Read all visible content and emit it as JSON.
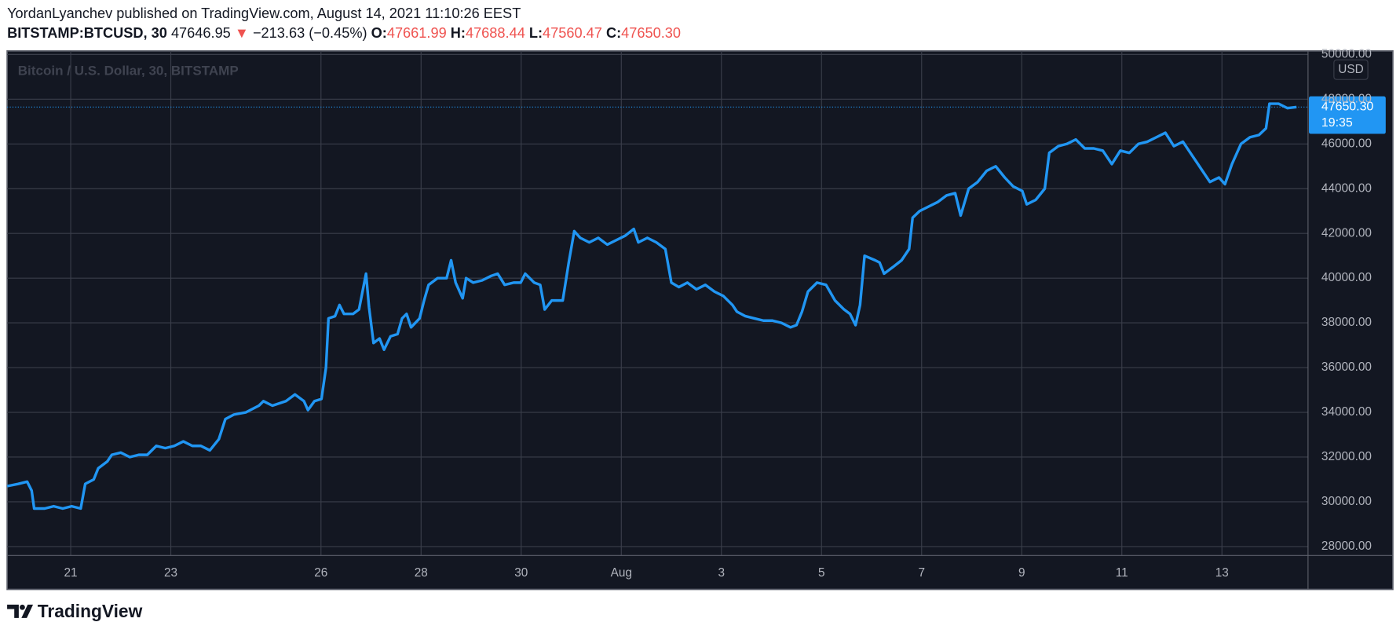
{
  "header": {
    "byline": "YordanLyanchev published on TradingView.com, August 14, 2021 11:10:26 EEST",
    "symbol": "BITSTAMP:BTCUSD, 30",
    "price": "47646.95",
    "arrow": "▼",
    "change": "−213.63 (−0.45%)",
    "open_label": "O:",
    "open": "47661.99",
    "high_label": "H:",
    "high": "47688.44",
    "low_label": "L:",
    "low": "47560.47",
    "close_label": "C:",
    "close": "47650.30"
  },
  "chart_data": {
    "type": "line",
    "title": "Bitcoin / U.S. Dollar, 30, BITSTAMP",
    "currency": "USD",
    "last_price_label": "47650.30",
    "countdown": "19:35",
    "x": [
      19.73,
      19.95,
      20.13,
      20.22,
      20.27,
      20.48,
      20.66,
      20.84,
      21.02,
      21.2,
      21.29,
      21.46,
      21.55,
      21.73,
      21.82,
      22.0,
      22.18,
      22.36,
      22.53,
      22.71,
      22.89,
      23.07,
      23.25,
      23.43,
      23.6,
      23.78,
      23.96,
      24.09,
      24.26,
      24.5,
      24.76,
      24.85,
      25.03,
      25.3,
      25.48,
      25.66,
      25.74,
      25.87,
      26.01,
      26.1,
      26.15,
      26.28,
      26.37,
      26.46,
      26.64,
      26.76,
      26.9,
      26.96,
      27.05,
      27.17,
      27.26,
      27.39,
      27.53,
      27.62,
      27.71,
      27.8,
      27.97,
      28.06,
      28.15,
      28.33,
      28.51,
      28.6,
      28.69,
      28.83,
      28.9,
      29.04,
      29.22,
      29.4,
      29.53,
      29.67,
      29.85,
      29.99,
      30.08,
      30.26,
      30.38,
      30.47,
      30.61,
      30.83,
      30.95,
      31.06,
      31.18,
      31.36,
      31.54,
      31.72,
      31.9,
      32.08,
      32.25,
      32.34,
      32.52,
      32.7,
      32.88,
      33.0,
      33.15,
      33.32,
      33.5,
      33.68,
      33.86,
      34.04,
      34.22,
      34.31,
      34.48,
      34.66,
      34.84,
      35.02,
      35.2,
      35.38,
      35.5,
      35.61,
      35.73,
      35.91,
      36.09,
      36.27,
      36.45,
      36.57,
      36.68,
      36.77,
      36.86,
      37.07,
      37.16,
      37.25,
      37.43,
      37.6,
      37.75,
      37.82,
      37.96,
      38.14,
      38.32,
      38.5,
      38.67,
      38.78,
      38.94,
      39.12,
      39.3,
      39.48,
      39.66,
      39.83,
      40.01,
      40.1,
      40.28,
      40.46,
      40.55,
      40.73,
      40.9,
      41.08,
      41.26,
      41.44,
      41.62,
      41.8,
      41.97,
      42.15,
      42.33,
      42.51,
      42.69,
      42.87,
      43.04,
      43.22,
      43.4,
      43.58,
      43.76,
      43.94,
      44.06,
      44.2,
      44.38,
      44.56,
      44.74,
      44.88,
      44.95,
      45.13,
      45.31,
      45.49
    ],
    "series": [
      {
        "name": "BITSTAMP:BTCUSD",
        "color": "#2196f3",
        "values": [
          30700,
          30800,
          30900,
          30500,
          29700,
          29700,
          29800,
          29700,
          29800,
          29700,
          30800,
          31000,
          31500,
          31800,
          32100,
          32200,
          32000,
          32100,
          32100,
          32500,
          32400,
          32500,
          32700,
          32500,
          32500,
          32300,
          32800,
          33700,
          33900,
          34000,
          34300,
          34500,
          34300,
          34500,
          34800,
          34500,
          34100,
          34500,
          34600,
          36000,
          38200,
          38300,
          38800,
          38400,
          38400,
          38600,
          40200,
          38700,
          37100,
          37300,
          36800,
          37400,
          37500,
          38200,
          38400,
          37800,
          38200,
          39000,
          39700,
          40000,
          40000,
          40800,
          39800,
          39100,
          40000,
          39800,
          39900,
          40100,
          40200,
          39700,
          39800,
          39800,
          40200,
          39800,
          39700,
          38600,
          39000,
          39000,
          40700,
          42100,
          41800,
          41600,
          41800,
          41500,
          41700,
          41900,
          42200,
          41600,
          41800,
          41600,
          41300,
          39800,
          39600,
          39800,
          39500,
          39700,
          39400,
          39200,
          38800,
          38500,
          38300,
          38200,
          38100,
          38100,
          38000,
          37800,
          37900,
          38500,
          39400,
          39800,
          39700,
          39000,
          38600,
          38400,
          37900,
          38800,
          41000,
          40800,
          40700,
          40200,
          40500,
          40800,
          41300,
          42700,
          43000,
          43200,
          43400,
          43700,
          43800,
          42800,
          44000,
          44300,
          44800,
          45000,
          44500,
          44100,
          43900,
          43300,
          43500,
          44000,
          45600,
          45900,
          46000,
          46200,
          45800,
          45800,
          45700,
          45100,
          45700,
          45600,
          46000,
          46100,
          46300,
          46500,
          45900,
          46100,
          45500,
          44900,
          44300,
          44500,
          44200,
          45100,
          46000,
          46300,
          46400,
          46700,
          47800,
          47800,
          47600,
          47650
        ]
      }
    ],
    "xlim": [
      19.73,
      45.72
    ],
    "xticks": [
      21,
      23,
      26,
      28,
      30,
      {
        "value": 32,
        "label": "Aug"
      },
      {
        "value": 34,
        "label": "3"
      },
      {
        "value": 36,
        "label": "5"
      },
      {
        "value": 38,
        "label": "7"
      },
      {
        "value": 40,
        "label": "9"
      },
      {
        "value": 42,
        "label": "11"
      },
      {
        "value": 44,
        "label": "13"
      }
    ],
    "ylim": [
      27600,
      50160
    ],
    "yticks": [
      {
        "value": 28000,
        "label": "28000.00"
      },
      {
        "value": 30000,
        "label": "30000.00"
      },
      {
        "value": 32000,
        "label": "32000.00"
      },
      {
        "value": 34000,
        "label": "34000.00"
      },
      {
        "value": 36000,
        "label": "36000.00"
      },
      {
        "value": 38000,
        "label": "38000.00"
      },
      {
        "value": 40000,
        "label": "40000.00"
      },
      {
        "value": 42000,
        "label": "42000.00"
      },
      {
        "value": 44000,
        "label": "44000.00"
      },
      {
        "value": 46000,
        "label": "46000.00"
      },
      {
        "value": 48000,
        "label": "48000.00"
      },
      {
        "value": 50000,
        "label": "50000.00"
      }
    ],
    "grid": true
  },
  "footer": {
    "brand": "TradingView"
  }
}
